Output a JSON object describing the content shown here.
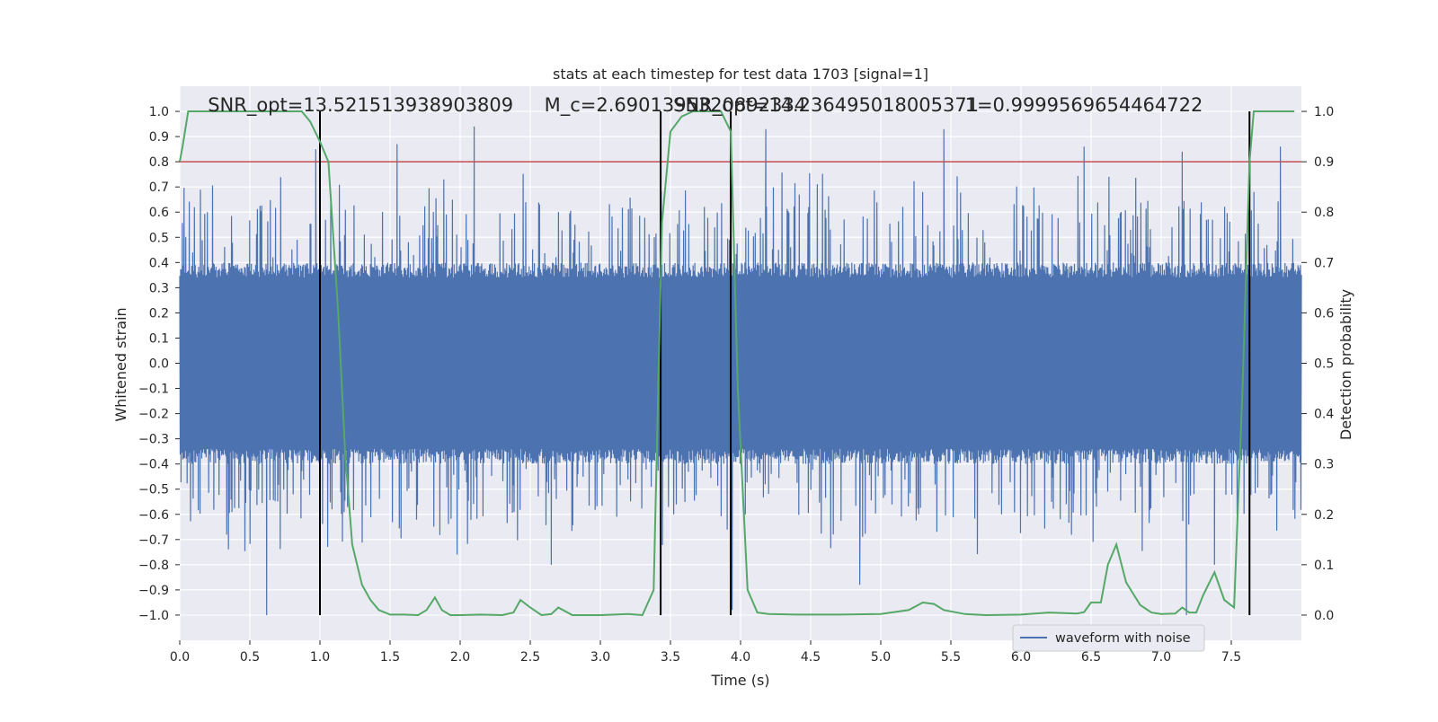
{
  "chart_data": {
    "type": "line",
    "title": "stats at each timestep for test data 1703 [signal=1]",
    "xlabel": "Time (s)",
    "ylabel_left": "Whitened strain",
    "ylabel_right": "Detection probability",
    "xlim": [
      0.0,
      8.0
    ],
    "ylim_left": [
      -1.1,
      1.1
    ],
    "ylim_right": [
      -0.05,
      1.05
    ],
    "x_ticks": [
      "0.0",
      "0.5",
      "1.0",
      "1.5",
      "2.0",
      "2.5",
      "3.0",
      "3.5",
      "4.0",
      "4.5",
      "5.0",
      "5.5",
      "6.0",
      "6.5",
      "7.0",
      "7.5"
    ],
    "y_ticks_left": [
      "1.0",
      "0.9",
      "0.8",
      "0.7",
      "0.6",
      "0.5",
      "0.4",
      "0.3",
      "0.2",
      "0.1",
      "0.0",
      "-0.1",
      "-0.2",
      "-0.3",
      "-0.4",
      "-0.5",
      "-0.6",
      "-0.7",
      "-0.8",
      "-0.9",
      "-1.0"
    ],
    "y_ticks_right": [
      "1.0",
      "0.9",
      "0.8",
      "0.7",
      "0.6",
      "0.5",
      "0.4",
      "0.3",
      "0.2",
      "0.1",
      "0.0"
    ],
    "grid": true,
    "legend_position": "lower-right",
    "legend_label": "waveform with noise",
    "colors": {
      "plot_bg": "#eaeaf2",
      "waveform": "#4c72b0",
      "probability": "#55a868",
      "threshold": "#c44e52",
      "markers": "#000000"
    },
    "annotations": [
      {
        "text": "SNR_opt=13.521513938903809",
        "x": 0.2
      },
      {
        "text": "M_c=2.6901395320892334",
        "x": 2.6
      },
      {
        "text": "SNR_opt=14.236495018005371",
        "x": 3.52
      },
      {
        "text": "1=0.9999569654464722",
        "x": 5.6
      }
    ],
    "vertical_markers": [
      1.0,
      3.43,
      3.93,
      7.63
    ],
    "threshold_probability": 0.9,
    "series": [
      {
        "name": "waveform with noise",
        "kind": "noise-waveform",
        "x_range": [
          0.0,
          8.0
        ],
        "spikes": [
          {
            "x": 0.62,
            "y": -1.0
          },
          {
            "x": 0.97,
            "y": 0.85
          },
          {
            "x": 1.55,
            "y": 0.87
          },
          {
            "x": 2.1,
            "y": 0.94
          },
          {
            "x": 2.65,
            "y": -0.8
          },
          {
            "x": 3.94,
            "y": -0.98
          },
          {
            "x": 4.18,
            "y": 0.93
          },
          {
            "x": 4.85,
            "y": -0.88
          },
          {
            "x": 5.45,
            "y": 0.93
          },
          {
            "x": 6.45,
            "y": 0.86
          },
          {
            "x": 7.15,
            "y": 0.84
          },
          {
            "x": 7.18,
            "y": -1.0
          },
          {
            "x": 7.85,
            "y": 0.86
          },
          {
            "x": 7.38,
            "y": -0.8
          }
        ]
      },
      {
        "name": "detection probability",
        "axis": "right",
        "x": [
          0.0,
          0.02,
          0.06,
          0.1,
          0.2,
          0.4,
          0.6,
          0.8,
          0.87,
          0.93,
          1.0,
          1.06,
          1.13,
          1.18,
          1.23,
          1.3,
          1.36,
          1.42,
          1.5,
          1.6,
          1.7,
          1.76,
          1.82,
          1.87,
          1.93,
          2.0,
          2.15,
          2.3,
          2.38,
          2.43,
          2.5,
          2.58,
          2.65,
          2.7,
          2.8,
          3.0,
          3.2,
          3.3,
          3.38,
          3.44,
          3.5,
          3.58,
          3.66,
          3.76,
          3.86,
          3.93,
          3.98,
          4.05,
          4.12,
          4.2,
          4.4,
          4.7,
          5.0,
          5.2,
          5.3,
          5.38,
          5.45,
          5.6,
          5.75,
          6.0,
          6.2,
          6.4,
          6.45,
          6.5,
          6.57,
          6.62,
          6.68,
          6.75,
          6.85,
          6.93,
          7.0,
          7.1,
          7.15,
          7.2,
          7.25,
          7.3,
          7.38,
          7.45,
          7.52,
          7.58,
          7.63,
          7.66,
          7.7,
          7.75,
          7.85,
          7.95
        ],
        "values": [
          0.9,
          0.93,
          1.0,
          1.0,
          1.0,
          1.0,
          1.0,
          1.0,
          1.0,
          0.98,
          0.94,
          0.9,
          0.6,
          0.32,
          0.14,
          0.06,
          0.03,
          0.01,
          0.001,
          0.001,
          0.0,
          0.01,
          0.035,
          0.01,
          0.0,
          0.0,
          0.001,
          0.0,
          0.005,
          0.03,
          0.015,
          0.0,
          0.002,
          0.015,
          0.0,
          0.0,
          0.002,
          0.0,
          0.05,
          0.78,
          0.96,
          0.99,
          1.0,
          1.0,
          1.0,
          0.96,
          0.45,
          0.05,
          0.005,
          0.002,
          0.001,
          0.001,
          0.002,
          0.01,
          0.025,
          0.022,
          0.01,
          0.002,
          0.0,
          0.001,
          0.005,
          0.003,
          0.006,
          0.025,
          0.025,
          0.1,
          0.14,
          0.065,
          0.02,
          0.005,
          0.002,
          0.003,
          0.015,
          0.005,
          0.005,
          0.04,
          0.085,
          0.03,
          0.015,
          0.45,
          0.9,
          1.0,
          1.0,
          1.0,
          1.0,
          1.0
        ]
      }
    ]
  }
}
